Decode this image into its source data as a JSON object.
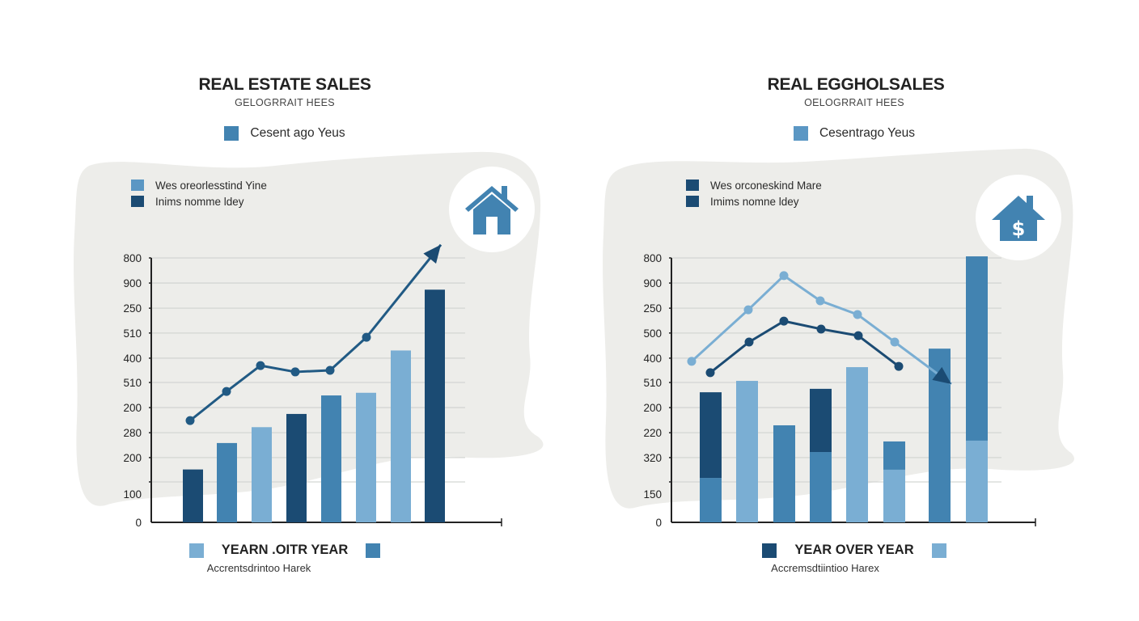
{
  "colors": {
    "dark": "#1b4b73",
    "mid": "#4283b1",
    "light": "#7aaed3",
    "grid": "#d4d6d3",
    "axis": "#222222",
    "blob": "#ededea",
    "icon": "#4283b1"
  },
  "chart_data": [
    {
      "type": "bar",
      "title": "REAL ESTATE SALES",
      "subtitle": "GELOGRRAIT HEES",
      "top_legend": {
        "label": "Cesent ago Yeus",
        "color": "#4283b1"
      },
      "inner_legend": [
        {
          "label": "Wes oreorlesstind Yine",
          "color": "#5b97c4"
        },
        {
          "label": "Inims nomme ldey",
          "color": "#1b4b73"
        }
      ],
      "icon": "house-icon",
      "y_tick_labels": [
        "800",
        "900",
        "250",
        "510",
        "400",
        "510",
        "200",
        "280",
        "200",
        "100",
        "0"
      ],
      "value_scale": "fraction of axis height (0 = baseline, 1 = top gridline)",
      "ylim": [
        0,
        1
      ],
      "grid": true,
      "bars": [
        {
          "value": 0.2,
          "color": "dark"
        },
        {
          "value": 0.3,
          "color": "mid"
        },
        {
          "value": 0.36,
          "color": "light"
        },
        {
          "value": 0.41,
          "color": "dark"
        },
        {
          "value": 0.48,
          "color": "mid"
        },
        {
          "value": 0.49,
          "color": "light"
        },
        {
          "value": 0.65,
          "color": "light"
        },
        {
          "value": 0.88,
          "color": "dark"
        }
      ],
      "series": [
        {
          "name": "trend",
          "color": "dark-mid",
          "points": [
            0.385,
            0.495,
            0.593,
            0.569,
            0.575,
            0.7
          ],
          "arrow_end": 1.05
        }
      ],
      "bottom_legend": {
        "label": "YEARN .OITR YEAR",
        "left_color": "#7aaed3",
        "right_color": "#4283b1"
      },
      "caption": "Accrentsdrintoo Harek",
      "legend_position": "top-left"
    },
    {
      "type": "bar",
      "title": "REAL EGGHOLSALES",
      "subtitle": "OELOGRRAIT HEES",
      "top_legend": {
        "label": "Cesentrago Yeus",
        "color": "#5b97c4"
      },
      "inner_legend": [
        {
          "label": "Wes orconeskind Mare",
          "color": "#1b4b73"
        },
        {
          "label": "Imims nomne ldey",
          "color": "#1b4b73"
        }
      ],
      "icon": "house-dollar-icon",
      "y_tick_labels": [
        "800",
        "900",
        "250",
        "500",
        "400",
        "510",
        "200",
        "220",
        "320",
        "150",
        "0"
      ],
      "value_scale": "fraction of axis height (0 = baseline, 1 = top gridline)",
      "ylim": [
        0,
        1
      ],
      "grid": true,
      "bars": [
        {
          "bottom": 0.168,
          "bottom_color": "mid",
          "total": 0.492,
          "top_color": "dark"
        },
        {
          "bottom": 0.535,
          "bottom_color": "light",
          "total": 0.535,
          "top_color": "light"
        },
        {
          "bottom": 0.367,
          "bottom_color": "mid",
          "total": 0.367,
          "top_color": "mid"
        },
        {
          "bottom": 0.266,
          "bottom_color": "mid",
          "total": 0.505,
          "top_color": "dark"
        },
        {
          "bottom": 0.587,
          "bottom_color": "light",
          "total": 0.587,
          "top_color": "light"
        },
        {
          "bottom": 0.199,
          "bottom_color": "light",
          "total": 0.306,
          "top_color": "mid"
        },
        {
          "bottom": 0.657,
          "bottom_color": "mid",
          "total": 0.657,
          "top_color": "mid"
        },
        {
          "bottom": 0.309,
          "bottom_color": "light",
          "total": 1.006,
          "top_color": "mid"
        }
      ],
      "series": [
        {
          "name": "light-line",
          "color": "light",
          "points": [
            0.609,
            0.804,
            0.933,
            0.838,
            0.786,
            0.682
          ],
          "arrow_end": 0.523
        },
        {
          "name": "dark-line",
          "color": "dark",
          "points": [
            0.566,
            0.682,
            0.761,
            0.731,
            0.706,
            0.59
          ]
        }
      ],
      "bottom_legend": {
        "label": "YEAR OVER YEAR",
        "left_color": "#1b4b73",
        "right_color": "#7aaed3"
      },
      "caption": "Accremsdtiintioo Harex",
      "legend_position": "top-left"
    }
  ]
}
